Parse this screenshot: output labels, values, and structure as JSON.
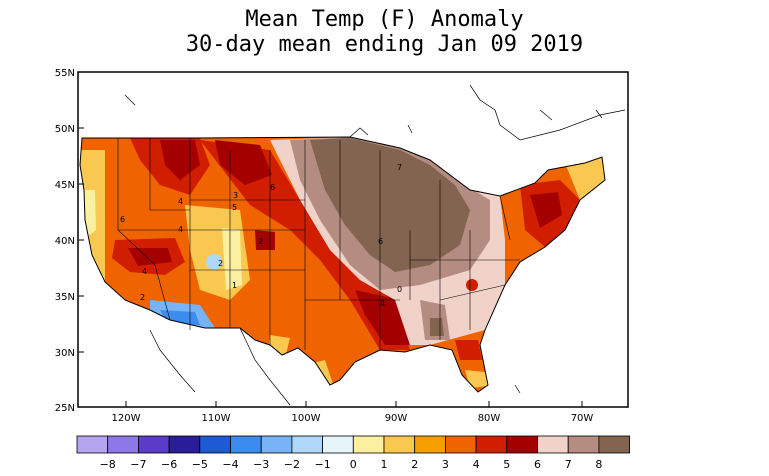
{
  "title": "Mean Temp (F) Anomaly",
  "subtitle": "30-day mean ending Jan 09 2019",
  "lat_labels": [
    "55N",
    "50N",
    "45N",
    "40N",
    "35N",
    "30N",
    "25N"
  ],
  "lon_labels": [
    "120W",
    "110W",
    "100W",
    "90W",
    "80W",
    "70W"
  ],
  "legend": {
    "values": [
      "−8",
      "−7",
      "−6",
      "−5",
      "−4",
      "−3",
      "−2",
      "−1",
      "0",
      "1",
      "2",
      "3",
      "4",
      "5",
      "6",
      "7",
      "8"
    ],
    "colors": [
      "#b4a5f0",
      "#8c78e6",
      "#5a3cc8",
      "#281e96",
      "#1e5ad2",
      "#3c8cf0",
      "#78b4f5",
      "#afd7fa",
      "#e6f5fa",
      "#faf0a0",
      "#fac850",
      "#f5a000",
      "#f06400",
      "#d21e00",
      "#a50000",
      "#f0d2c8",
      "#b48c82",
      "#826450"
    ]
  },
  "contour_labels": [
    "4",
    "6",
    "3",
    "5",
    "6",
    "4",
    "2",
    "4",
    "2",
    "1",
    "2",
    "4",
    "0",
    "6",
    "7"
  ]
}
